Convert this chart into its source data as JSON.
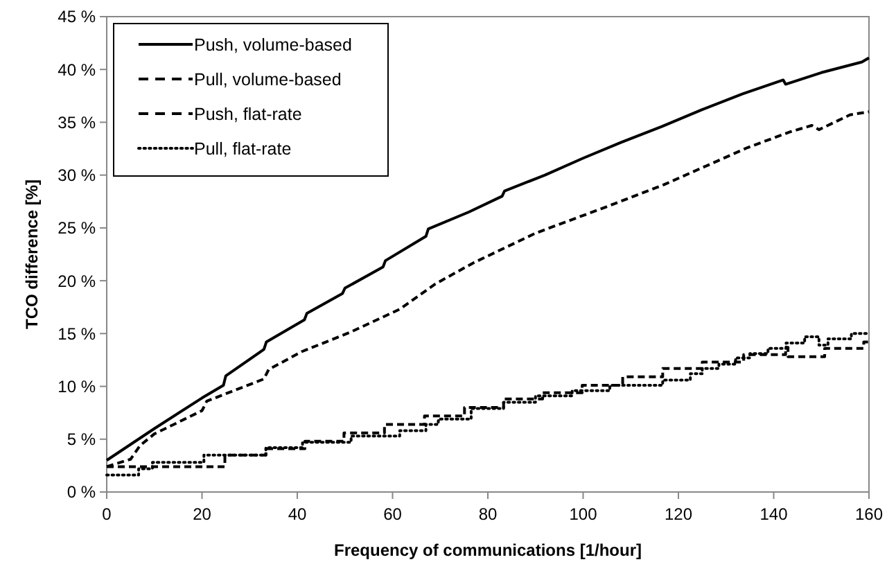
{
  "chart_data": {
    "type": "line",
    "xlabel": "Frequency of communications [1/hour]",
    "ylabel": "TCO difference [%]",
    "xlim": [
      0,
      160
    ],
    "ylim": [
      0,
      45
    ],
    "xticks": [
      0,
      20,
      40,
      60,
      80,
      100,
      120,
      140,
      160
    ],
    "yticks": [
      {
        "value": 0,
        "label": "0 %"
      },
      {
        "value": 5,
        "label": "5 %"
      },
      {
        "value": 10,
        "label": "10 %"
      },
      {
        "value": 15,
        "label": "15 %"
      },
      {
        "value": 20,
        "label": "20 %"
      },
      {
        "value": 25,
        "label": "25 %"
      },
      {
        "value": 30,
        "label": "30 %"
      },
      {
        "value": 35,
        "label": "35 %"
      },
      {
        "value": 40,
        "label": "40 %"
      },
      {
        "value": 45,
        "label": "45 %"
      }
    ],
    "grid": false,
    "legend": "top left",
    "marker": "none",
    "series": [
      {
        "name": "Push, volume-based",
        "color": "#000000",
        "line_style": "solid",
        "x": [
          0,
          10,
          20,
          24.5,
          25,
          33,
          33.5,
          41.5,
          42,
          49.5,
          50,
          58,
          58.5,
          67,
          67.5,
          76,
          83,
          83.5,
          92,
          100,
          108,
          116.5,
          125,
          133.5,
          142,
          142.5,
          150,
          158.5,
          160
        ],
        "values": [
          3.0,
          6.0,
          8.9,
          10.1,
          11.0,
          13.5,
          14.2,
          16.3,
          16.9,
          18.8,
          19.3,
          21.3,
          21.9,
          24.2,
          24.9,
          26.5,
          28.0,
          28.5,
          30.0,
          31.6,
          33.1,
          34.6,
          36.2,
          37.7,
          39.0,
          38.6,
          39.7,
          40.7,
          41.1
        ]
      },
      {
        "name": "Pull, volume-based",
        "color": "#000000",
        "line_style": "dashed",
        "x": [
          0,
          5,
          7,
          10,
          20,
          21,
          33,
          34,
          41,
          51,
          61.5,
          69,
          77,
          90,
          105.5,
          117,
          125,
          134.5,
          143.5,
          148,
          149.5,
          156,
          160
        ],
        "values": [
          2.4,
          3.1,
          4.4,
          5.5,
          7.7,
          8.6,
          10.7,
          11.6,
          13.3,
          15.1,
          17.3,
          19.7,
          21.7,
          24.5,
          27.1,
          29.1,
          30.7,
          32.6,
          34.1,
          34.7,
          34.3,
          35.7,
          36.0
        ]
      },
      {
        "name": "Push, flat-rate",
        "color": "#000000",
        "type": "step",
        "line_style": "dashed",
        "x": [
          0,
          24.8,
          33.4,
          41.6,
          49.8,
          58.3,
          66.7,
          75.1,
          83.3,
          91.5,
          99.8,
          108.3,
          116.7,
          125,
          133.7,
          142.5,
          143,
          150.7,
          158.9,
          160
        ],
        "values": [
          2.4,
          3.5,
          4.1,
          4.8,
          5.6,
          6.4,
          7.2,
          8.0,
          8.8,
          9.4,
          10.1,
          10.9,
          11.7,
          12.3,
          13.0,
          13.7,
          12.8,
          13.6,
          14.2,
          14.2
        ]
      },
      {
        "name": "Pull, flat-rate",
        "color": "#000000",
        "type": "step",
        "line_style": "dotted",
        "x": [
          0,
          6.7,
          9.6,
          20.4,
          33.4,
          41.1,
          51.3,
          61.5,
          67,
          69.6,
          76.5,
          83.3,
          90,
          97.7,
          105.6,
          116.7,
          122.5,
          125,
          128.5,
          132,
          135,
          138.8,
          142.6,
          146.5,
          149.5,
          151.4,
          156.3,
          160
        ],
        "values": [
          1.6,
          2.2,
          2.8,
          3.5,
          4.2,
          4.7,
          5.3,
          5.8,
          6.4,
          6.9,
          7.9,
          8.5,
          9.1,
          9.6,
          10.1,
          10.6,
          11.2,
          11.7,
          12.1,
          12.7,
          13.1,
          13.6,
          14.1,
          14.7,
          13.9,
          14.5,
          15.0,
          15.0
        ]
      }
    ]
  }
}
